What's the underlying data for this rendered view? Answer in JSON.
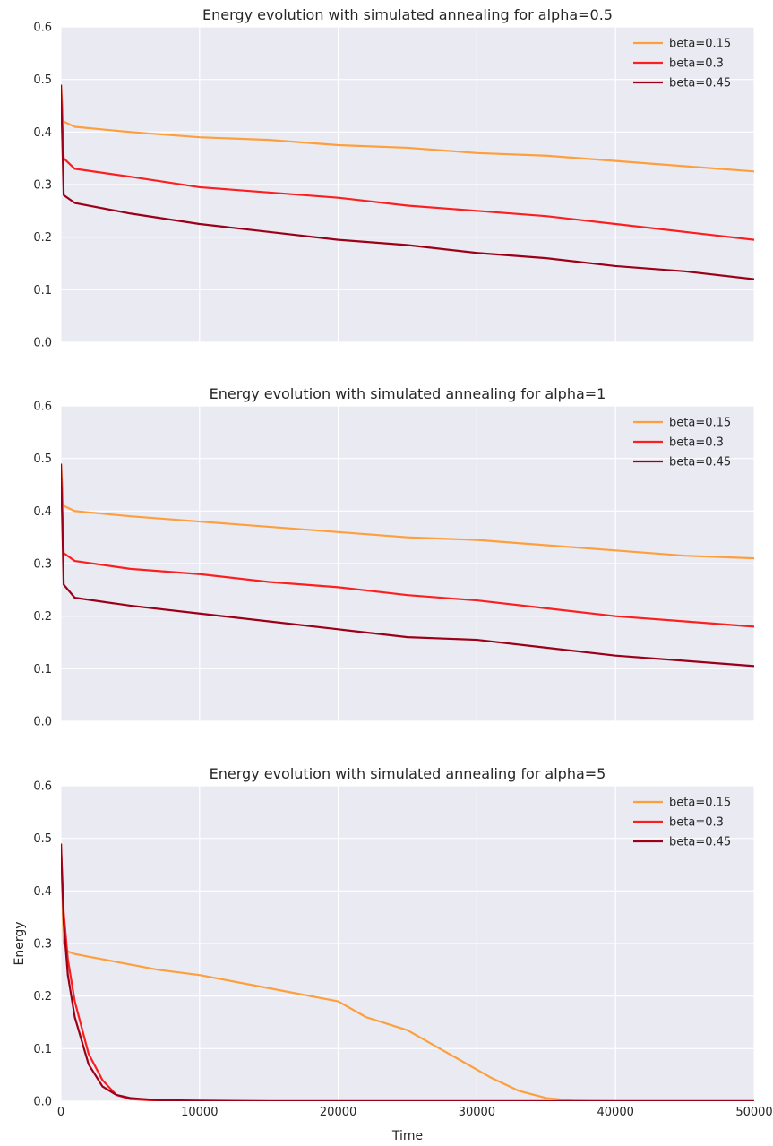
{
  "colors": {
    "background": "#eaeaf2",
    "grid": "#ffffff",
    "series": [
      "#fd9f3d",
      "#fc1f1f",
      "#9c0019"
    ]
  },
  "chart_data": [
    {
      "type": "line",
      "title": "Energy evolution with simulated annealing for alpha=0.5",
      "xlabel": "",
      "ylabel": "",
      "xlim": [
        0,
        50000
      ],
      "ylim": [
        0,
        0.6
      ],
      "xticks": [
        "",
        "",
        "",
        "",
        "",
        ""
      ],
      "yticks": [
        "0.0",
        "0.1",
        "0.2",
        "0.3",
        "0.4",
        "0.5",
        "0.6"
      ],
      "grid": true,
      "legend": "top-right",
      "x": [
        0,
        200,
        1000,
        5000,
        10000,
        15000,
        20000,
        25000,
        30000,
        35000,
        40000,
        45000,
        50000
      ],
      "series": [
        {
          "name": "beta=0.15",
          "values": [
            0.49,
            0.42,
            0.41,
            0.4,
            0.39,
            0.385,
            0.375,
            0.37,
            0.36,
            0.355,
            0.345,
            0.335,
            0.325
          ]
        },
        {
          "name": "beta=0.3",
          "values": [
            0.49,
            0.35,
            0.33,
            0.315,
            0.295,
            0.285,
            0.275,
            0.26,
            0.25,
            0.24,
            0.225,
            0.21,
            0.195
          ]
        },
        {
          "name": "beta=0.45",
          "values": [
            0.49,
            0.28,
            0.265,
            0.245,
            0.225,
            0.21,
            0.195,
            0.185,
            0.17,
            0.16,
            0.145,
            0.135,
            0.12
          ]
        }
      ]
    },
    {
      "type": "line",
      "title": "Energy evolution with simulated annealing for alpha=1",
      "xlabel": "",
      "ylabel": "",
      "xlim": [
        0,
        50000
      ],
      "ylim": [
        0,
        0.6
      ],
      "xticks": [
        "",
        "",
        "",
        "",
        "",
        ""
      ],
      "yticks": [
        "0.0",
        "0.1",
        "0.2",
        "0.3",
        "0.4",
        "0.5",
        "0.6"
      ],
      "grid": true,
      "legend": "top-right",
      "x": [
        0,
        200,
        1000,
        5000,
        10000,
        15000,
        20000,
        25000,
        30000,
        35000,
        40000,
        45000,
        50000
      ],
      "series": [
        {
          "name": "beta=0.15",
          "values": [
            0.49,
            0.41,
            0.4,
            0.39,
            0.38,
            0.37,
            0.36,
            0.35,
            0.345,
            0.335,
            0.325,
            0.315,
            0.31
          ]
        },
        {
          "name": "beta=0.3",
          "values": [
            0.49,
            0.32,
            0.305,
            0.29,
            0.28,
            0.265,
            0.255,
            0.24,
            0.23,
            0.215,
            0.2,
            0.19,
            0.18
          ]
        },
        {
          "name": "beta=0.45",
          "values": [
            0.49,
            0.26,
            0.235,
            0.22,
            0.205,
            0.19,
            0.175,
            0.16,
            0.155,
            0.14,
            0.125,
            0.115,
            0.105
          ]
        }
      ]
    },
    {
      "type": "line",
      "title": "Energy evolution with simulated annealing for alpha=5",
      "xlabel": "Time",
      "ylabel": "Energy",
      "xlim": [
        0,
        50000
      ],
      "ylim": [
        0,
        0.6
      ],
      "xticks": [
        "0",
        "10000",
        "20000",
        "30000",
        "40000",
        "50000"
      ],
      "yticks": [
        "0.0",
        "0.1",
        "0.2",
        "0.3",
        "0.4",
        "0.5",
        "0.6"
      ],
      "grid": true,
      "legend": "top-right",
      "x": [
        0,
        200,
        500,
        1000,
        2000,
        3000,
        4000,
        5000,
        7000,
        10000,
        15000,
        20000,
        22000,
        25000,
        27000,
        29000,
        31000,
        33000,
        35000,
        37000,
        40000,
        50000
      ],
      "series": [
        {
          "name": "beta=0.15",
          "values": [
            0.49,
            0.3,
            0.285,
            0.28,
            0.275,
            0.27,
            0.265,
            0.26,
            0.25,
            0.24,
            0.215,
            0.19,
            0.16,
            0.135,
            0.105,
            0.075,
            0.045,
            0.02,
            0.006,
            0.001,
            0.0,
            0.0
          ]
        },
        {
          "name": "beta=0.3",
          "values": [
            0.49,
            0.36,
            0.27,
            0.19,
            0.09,
            0.04,
            0.012,
            0.004,
            0.001,
            0.0,
            0.0,
            0.0,
            0.0,
            0.0,
            0.0,
            0.0,
            0.0,
            0.0,
            0.0,
            0.0,
            0.0,
            0.0
          ]
        },
        {
          "name": "beta=0.45",
          "values": [
            0.49,
            0.34,
            0.24,
            0.16,
            0.07,
            0.028,
            0.012,
            0.006,
            0.002,
            0.001,
            0.0,
            0.0,
            0.0,
            0.0,
            0.0,
            0.0,
            0.0,
            0.0,
            0.0,
            0.0,
            0.0,
            0.0
          ]
        }
      ]
    }
  ]
}
